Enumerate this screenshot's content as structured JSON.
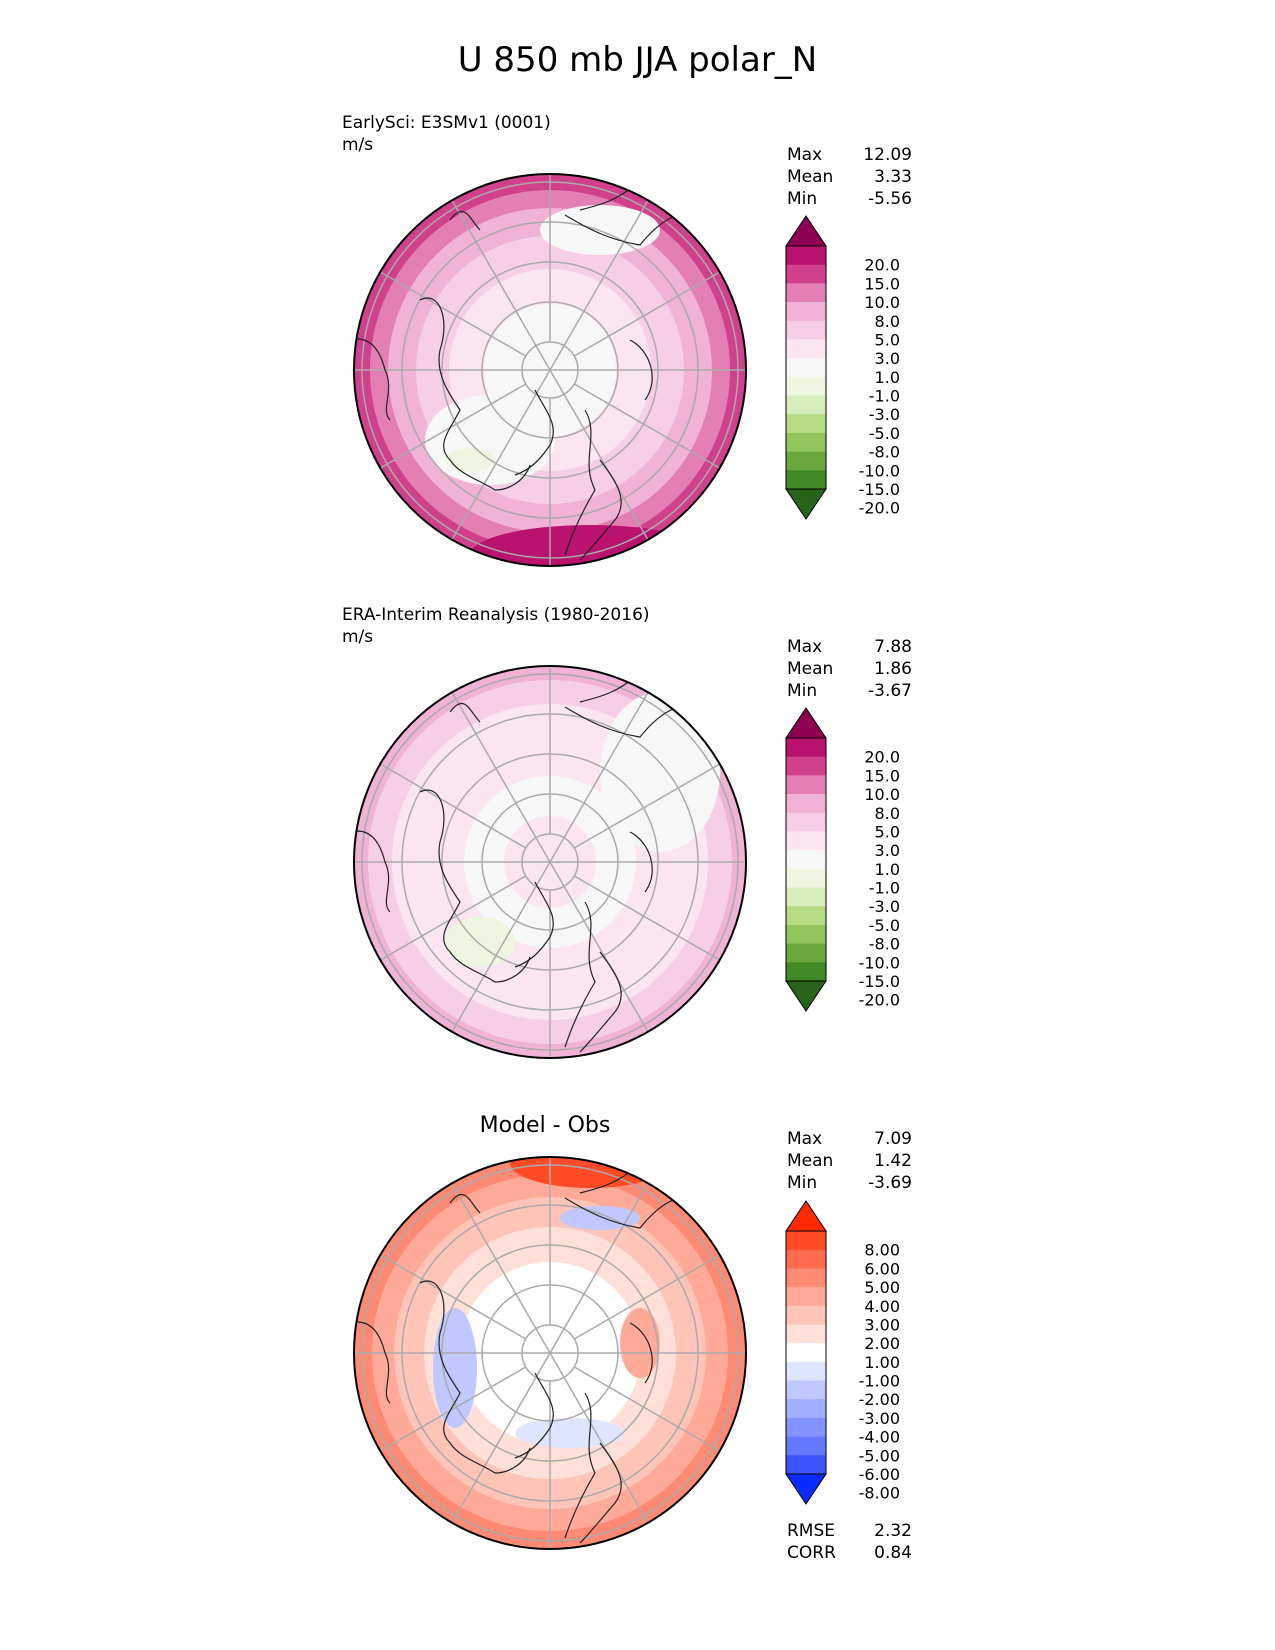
{
  "figure": {
    "title": "U 850 mb JJA polar_N"
  },
  "panels": [
    {
      "name": "test",
      "label": "EarlySci: E3SMv1 (0001)",
      "units": "m/s",
      "stats": [
        {
          "label": "Max",
          "value": "12.09"
        },
        {
          "label": "Mean",
          "value": "3.33"
        },
        {
          "label": "Min",
          "value": "-5.56"
        }
      ]
    },
    {
      "name": "reference",
      "label": "ERA-Interim Reanalysis (1980-2016)",
      "units": "m/s",
      "stats": [
        {
          "label": "Max",
          "value": "7.88"
        },
        {
          "label": "Mean",
          "value": "1.86"
        },
        {
          "label": "Min",
          "value": "-3.67"
        }
      ]
    },
    {
      "name": "difference",
      "title": "Model - Obs",
      "stats": [
        {
          "label": "Max",
          "value": "7.09"
        },
        {
          "label": "Mean",
          "value": "1.42"
        },
        {
          "label": "Min",
          "value": "-3.69"
        }
      ],
      "metrics": [
        {
          "label": "RMSE",
          "value": "2.32"
        },
        {
          "label": "CORR",
          "value": "0.84"
        }
      ]
    }
  ],
  "chart_data": [
    {
      "type": "heatmap",
      "projection": "north polar stereographic",
      "colorbar": {
        "labels": [
          "20.0",
          "15.0",
          "10.0",
          "8.0",
          "5.0",
          "3.0",
          "1.0",
          "-1.0",
          "-3.0",
          "-5.0",
          "-8.0",
          "-10.0",
          "-15.0",
          "-20.0"
        ],
        "colors": [
          "#8e0152",
          "#b9126f",
          "#d0408d",
          "#e47fb3",
          "#f0b3d6",
          "#f6cfe6",
          "#fae5f1",
          "#f7f7f7",
          "#eef6e0",
          "#d8edbc",
          "#b7dc86",
          "#93c55d",
          "#6aa83d",
          "#3f8a26",
          "#276419"
        ],
        "extend": "both"
      }
    },
    {
      "type": "heatmap",
      "projection": "north polar stereographic",
      "colorbar": {
        "labels": [
          "20.0",
          "15.0",
          "10.0",
          "8.0",
          "5.0",
          "3.0",
          "1.0",
          "-1.0",
          "-3.0",
          "-5.0",
          "-8.0",
          "-10.0",
          "-15.0",
          "-20.0"
        ],
        "colors": [
          "#8e0152",
          "#b9126f",
          "#d0408d",
          "#e47fb3",
          "#f0b3d6",
          "#f6cfe6",
          "#fae5f1",
          "#f7f7f7",
          "#eef6e0",
          "#d8edbc",
          "#b7dc86",
          "#93c55d",
          "#6aa83d",
          "#3f8a26",
          "#276419"
        ],
        "extend": "both"
      }
    },
    {
      "type": "heatmap",
      "projection": "north polar stereographic",
      "colorbar": {
        "labels": [
          "8.00",
          "6.00",
          "5.00",
          "4.00",
          "3.00",
          "2.00",
          "1.00",
          "-1.00",
          "-2.00",
          "-3.00",
          "-4.00",
          "-5.00",
          "-6.00",
          "-8.00"
        ],
        "colors": [
          "#ff2a00",
          "#ff4a26",
          "#ff6a4d",
          "#ff8a73",
          "#ffaa99",
          "#ffc4b8",
          "#ffe0d8",
          "#ffffff",
          "#dfe4ff",
          "#c0c8ff",
          "#a1adff",
          "#8292ff",
          "#6377ff",
          "#3d55ff",
          "#0a2bff"
        ],
        "extend": "both"
      }
    }
  ]
}
